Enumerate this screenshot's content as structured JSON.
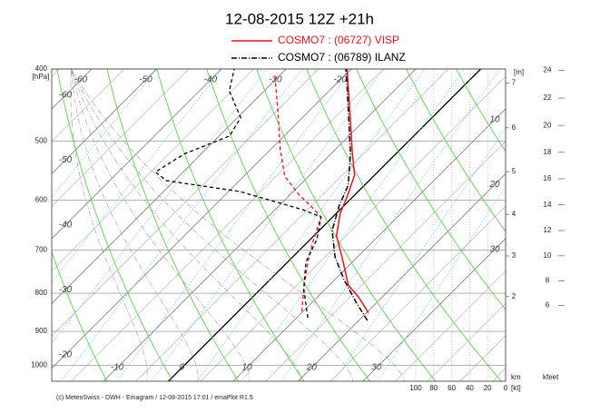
{
  "chart_data": {
    "type": "skew-t",
    "title": "12-08-2015  12Z +21h",
    "y_label": "[hPa]",
    "ylim": [
      1050,
      400
    ],
    "yticks": [
      400,
      500,
      600,
      700,
      800,
      900,
      1000
    ],
    "log_y": true,
    "xlim": [
      -18,
      52
    ],
    "xticks": [
      -60,
      -50,
      -40,
      -30,
      -20,
      -10,
      0,
      10,
      20,
      30
    ],
    "series": [
      {
        "name": "COSMO7 : (06727)  VISP",
        "color": "#e8141b",
        "temperature_style": "solid",
        "dewpoint_style": "dashed",
        "temperature": {
          "p": [
            850,
            810,
            780,
            715,
            670,
            625,
            590,
            555,
            520,
            465,
            400
          ],
          "t": [
            20.3,
            16.4,
            12.9,
            7.6,
            3.5,
            0.6,
            -1.1,
            -3.1,
            -6.7,
            -12.6,
            -20.6
          ]
        },
        "dewpoint": {
          "p": [
            846,
            789,
            726,
            687,
            632,
            614,
            589,
            557,
            512,
            452,
            410
          ],
          "t": [
            9.8,
            6.6,
            3.1,
            1.0,
            -1.8,
            -4.6,
            -8.8,
            -13.7,
            -18.6,
            -25.2,
            -30.5
          ]
        }
      },
      {
        "name": "COSMO7 : (06789)  ILANZ",
        "color": "#000000",
        "temperature_style": "dash-dot",
        "dewpoint_style": "dashed",
        "temperature": {
          "p": [
            870,
            823,
            768,
            716,
            659,
            611,
            573,
            520,
            428,
            400
          ],
          "t": [
            21.3,
            16.8,
            11.5,
            6.6,
            2.0,
            -0.7,
            -2.5,
            -7.0,
            -17.2,
            -20.8
          ]
        },
        "dewpoint": {
          "p": [
            863,
            789,
            726,
            677,
            632,
            618,
            584,
            565,
            550,
            520,
            492,
            465,
            428,
            400
          ],
          "t": [
            11.7,
            6.6,
            2.8,
            1.0,
            -1.8,
            -5.7,
            -18.3,
            -31.2,
            -34.3,
            -32.6,
            -28.4,
            -29.5,
            -35.4,
            -38.0
          ]
        }
      }
    ],
    "wind_speed_lim": [
      0,
      100
    ],
    "wind_speed_ticks": [
      100,
      80,
      60,
      40,
      20,
      0
    ],
    "wind_speed_unit": "[kt]",
    "height_unit": "[m]",
    "km_label": "km",
    "km_ticks": [
      2,
      3,
      4,
      5,
      6,
      7
    ],
    "kfeet_label": "kfeet",
    "kfeet_ticks": [
      6,
      8,
      10,
      12,
      14,
      16,
      18,
      20,
      22,
      24
    ],
    "footer": "(c) MeteoSwiss - DWH - Emagram / 12-08-2015  17:01 / emaPlot R1.5"
  }
}
